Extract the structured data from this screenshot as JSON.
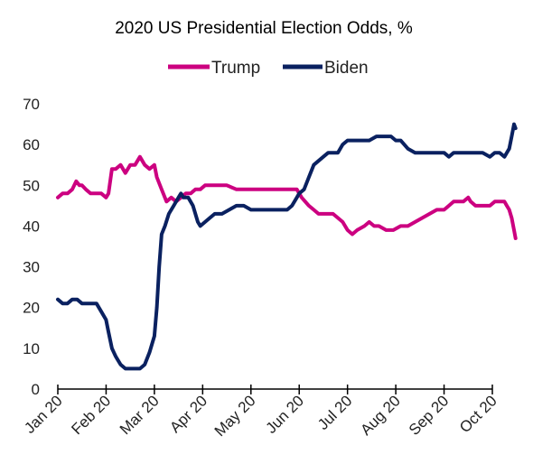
{
  "chart_data": {
    "type": "line",
    "title": "2020 US Presidential Election Odds, %",
    "xlabel": "",
    "ylabel": "",
    "ylim": [
      0,
      70
    ],
    "yticks": [
      "0",
      "10",
      "20",
      "30",
      "40",
      "50",
      "60",
      "70"
    ],
    "xticks": [
      "Jan 20",
      "Feb 20",
      "Mar 20",
      "Apr 20",
      "May 20",
      "Jun 20",
      "Jul 20",
      "Aug 20",
      "Sep 20",
      "Oct 20"
    ],
    "grid": false,
    "legend_position": "top",
    "x_axis": "month index (0 = Jan 20, 9 = Oct 20)",
    "series": [
      {
        "name": "Trump",
        "color": "#cc0080",
        "points": [
          [
            0.0,
            47
          ],
          [
            0.1,
            48
          ],
          [
            0.2,
            48
          ],
          [
            0.3,
            49
          ],
          [
            0.38,
            51
          ],
          [
            0.45,
            50
          ],
          [
            0.5,
            50
          ],
          [
            0.58,
            49
          ],
          [
            0.68,
            48
          ],
          [
            0.8,
            48
          ],
          [
            0.9,
            48
          ],
          [
            1.0,
            47
          ],
          [
            1.05,
            48
          ],
          [
            1.12,
            54
          ],
          [
            1.2,
            54
          ],
          [
            1.3,
            55
          ],
          [
            1.4,
            53
          ],
          [
            1.5,
            55
          ],
          [
            1.6,
            55
          ],
          [
            1.7,
            57
          ],
          [
            1.8,
            55
          ],
          [
            1.9,
            54
          ],
          [
            2.0,
            55
          ],
          [
            2.05,
            52
          ],
          [
            2.15,
            49
          ],
          [
            2.25,
            46
          ],
          [
            2.35,
            47
          ],
          [
            2.45,
            46
          ],
          [
            2.55,
            47
          ],
          [
            2.65,
            48
          ],
          [
            2.75,
            48
          ],
          [
            2.85,
            49
          ],
          [
            2.95,
            49
          ],
          [
            3.05,
            50
          ],
          [
            3.15,
            50
          ],
          [
            3.3,
            50
          ],
          [
            3.5,
            50
          ],
          [
            3.7,
            49
          ],
          [
            3.9,
            49
          ],
          [
            4.1,
            49
          ],
          [
            4.3,
            49
          ],
          [
            4.5,
            49
          ],
          [
            4.7,
            49
          ],
          [
            4.85,
            49
          ],
          [
            4.95,
            49
          ],
          [
            5.05,
            47
          ],
          [
            5.2,
            45
          ],
          [
            5.3,
            44
          ],
          [
            5.4,
            43
          ],
          [
            5.5,
            43
          ],
          [
            5.6,
            43
          ],
          [
            5.7,
            43
          ],
          [
            5.8,
            42
          ],
          [
            5.9,
            41
          ],
          [
            6.0,
            39
          ],
          [
            6.1,
            38
          ],
          [
            6.2,
            39
          ],
          [
            6.35,
            40
          ],
          [
            6.45,
            41
          ],
          [
            6.55,
            40
          ],
          [
            6.65,
            40
          ],
          [
            6.8,
            39
          ],
          [
            6.95,
            39
          ],
          [
            7.1,
            40
          ],
          [
            7.25,
            40
          ],
          [
            7.4,
            41
          ],
          [
            7.55,
            42
          ],
          [
            7.7,
            43
          ],
          [
            7.85,
            44
          ],
          [
            8.0,
            44
          ],
          [
            8.1,
            45
          ],
          [
            8.2,
            46
          ],
          [
            8.3,
            46
          ],
          [
            8.4,
            46
          ],
          [
            8.5,
            47
          ],
          [
            8.55,
            46
          ],
          [
            8.65,
            45
          ],
          [
            8.75,
            45
          ],
          [
            8.85,
            45
          ],
          [
            8.95,
            45
          ],
          [
            9.05,
            46
          ],
          [
            9.15,
            46
          ],
          [
            9.25,
            46
          ],
          [
            9.3,
            45
          ],
          [
            9.35,
            44
          ],
          [
            9.4,
            42
          ],
          [
            9.45,
            39
          ],
          [
            9.48,
            37
          ]
        ]
      },
      {
        "name": "Biden",
        "color": "#0a2160",
        "points": [
          [
            0.0,
            22
          ],
          [
            0.1,
            21
          ],
          [
            0.2,
            21
          ],
          [
            0.3,
            22
          ],
          [
            0.4,
            22
          ],
          [
            0.5,
            21
          ],
          [
            0.6,
            21
          ],
          [
            0.7,
            21
          ],
          [
            0.8,
            21
          ],
          [
            0.9,
            19
          ],
          [
            1.0,
            17
          ],
          [
            1.05,
            14
          ],
          [
            1.12,
            10
          ],
          [
            1.2,
            8
          ],
          [
            1.3,
            6
          ],
          [
            1.4,
            5
          ],
          [
            1.5,
            5
          ],
          [
            1.6,
            5
          ],
          [
            1.7,
            5
          ],
          [
            1.8,
            6
          ],
          [
            1.9,
            9
          ],
          [
            2.0,
            13
          ],
          [
            2.05,
            20
          ],
          [
            2.1,
            30
          ],
          [
            2.15,
            38
          ],
          [
            2.22,
            40
          ],
          [
            2.3,
            43
          ],
          [
            2.4,
            45
          ],
          [
            2.5,
            47
          ],
          [
            2.55,
            48
          ],
          [
            2.6,
            47
          ],
          [
            2.7,
            47
          ],
          [
            2.8,
            45
          ],
          [
            2.9,
            41
          ],
          [
            2.95,
            40
          ],
          [
            3.05,
            41
          ],
          [
            3.15,
            42
          ],
          [
            3.25,
            43
          ],
          [
            3.4,
            43
          ],
          [
            3.55,
            44
          ],
          [
            3.7,
            45
          ],
          [
            3.85,
            45
          ],
          [
            4.0,
            44
          ],
          [
            4.15,
            44
          ],
          [
            4.3,
            44
          ],
          [
            4.45,
            44
          ],
          [
            4.6,
            44
          ],
          [
            4.75,
            44
          ],
          [
            4.85,
            45
          ],
          [
            4.95,
            47
          ],
          [
            5.0,
            48
          ],
          [
            5.1,
            49
          ],
          [
            5.2,
            52
          ],
          [
            5.3,
            55
          ],
          [
            5.4,
            56
          ],
          [
            5.5,
            57
          ],
          [
            5.6,
            58
          ],
          [
            5.7,
            58
          ],
          [
            5.8,
            58
          ],
          [
            5.9,
            60
          ],
          [
            6.0,
            61
          ],
          [
            6.15,
            61
          ],
          [
            6.3,
            61
          ],
          [
            6.45,
            61
          ],
          [
            6.6,
            62
          ],
          [
            6.75,
            62
          ],
          [
            6.9,
            62
          ],
          [
            7.0,
            61
          ],
          [
            7.1,
            61
          ],
          [
            7.25,
            59
          ],
          [
            7.4,
            58
          ],
          [
            7.55,
            58
          ],
          [
            7.7,
            58
          ],
          [
            7.85,
            58
          ],
          [
            8.0,
            58
          ],
          [
            8.1,
            57
          ],
          [
            8.2,
            58
          ],
          [
            8.35,
            58
          ],
          [
            8.5,
            58
          ],
          [
            8.65,
            58
          ],
          [
            8.8,
            58
          ],
          [
            8.95,
            57
          ],
          [
            9.05,
            58
          ],
          [
            9.15,
            58
          ],
          [
            9.25,
            57
          ],
          [
            9.3,
            58
          ],
          [
            9.35,
            59
          ],
          [
            9.4,
            62
          ],
          [
            9.45,
            65
          ],
          [
            9.48,
            64
          ]
        ]
      }
    ]
  }
}
